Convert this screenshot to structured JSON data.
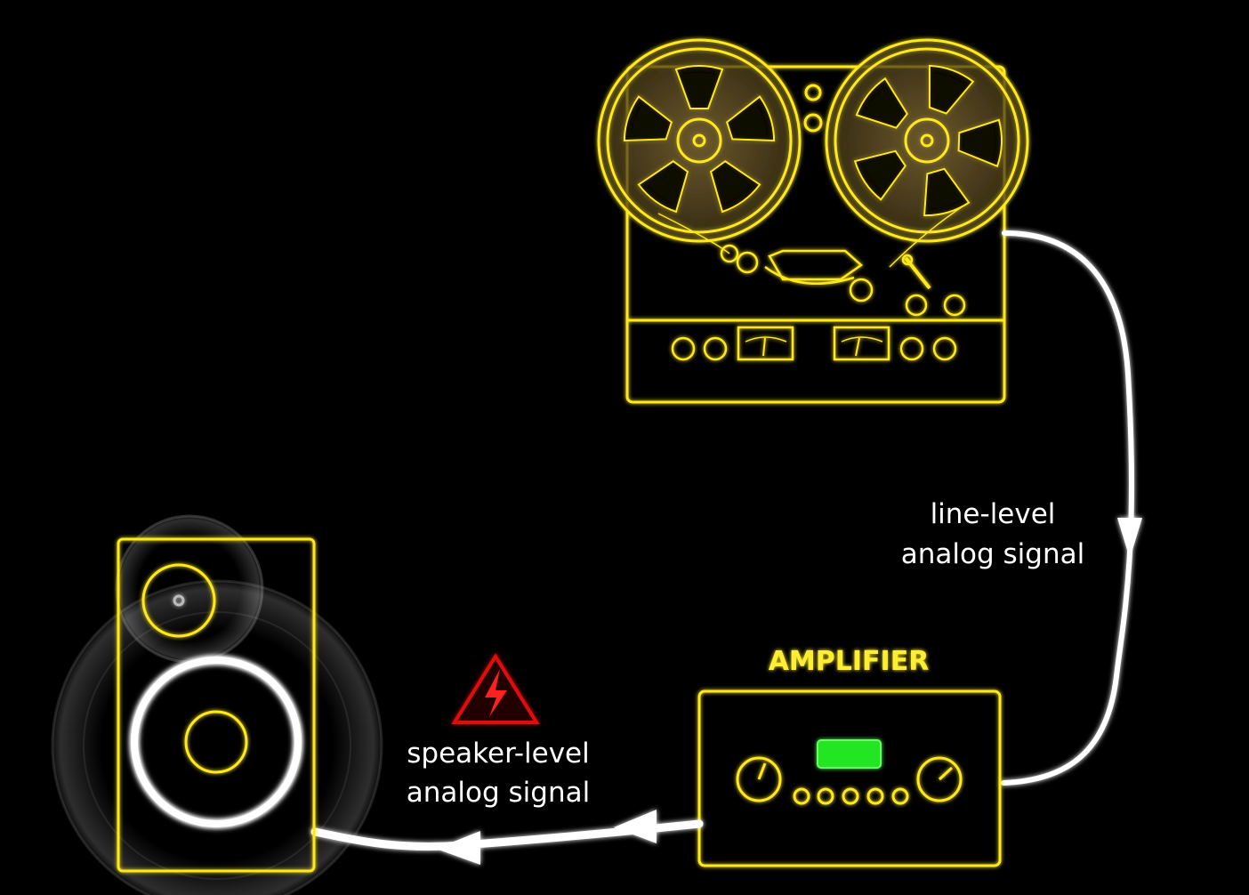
{
  "colors": {
    "background": "#000000",
    "device_outline": "#ffe81a",
    "cable": "#ffffff",
    "amplifier_display": "#22e622",
    "warning": "#e01010"
  },
  "devices": {
    "tape_machine": {
      "icon": "reel-to-reel-tape-recorder-icon"
    },
    "amplifier": {
      "label": "AMPLIFIER",
      "icon": "amplifier-icon"
    },
    "speaker": {
      "icon": "loudspeaker-icon"
    }
  },
  "signals": {
    "line_level": {
      "line1": "line-level",
      "line2": "analog signal"
    },
    "speaker_level": {
      "line1": "speaker-level",
      "line2": "analog signal",
      "warning_icon": "high-voltage-warning-icon"
    }
  }
}
